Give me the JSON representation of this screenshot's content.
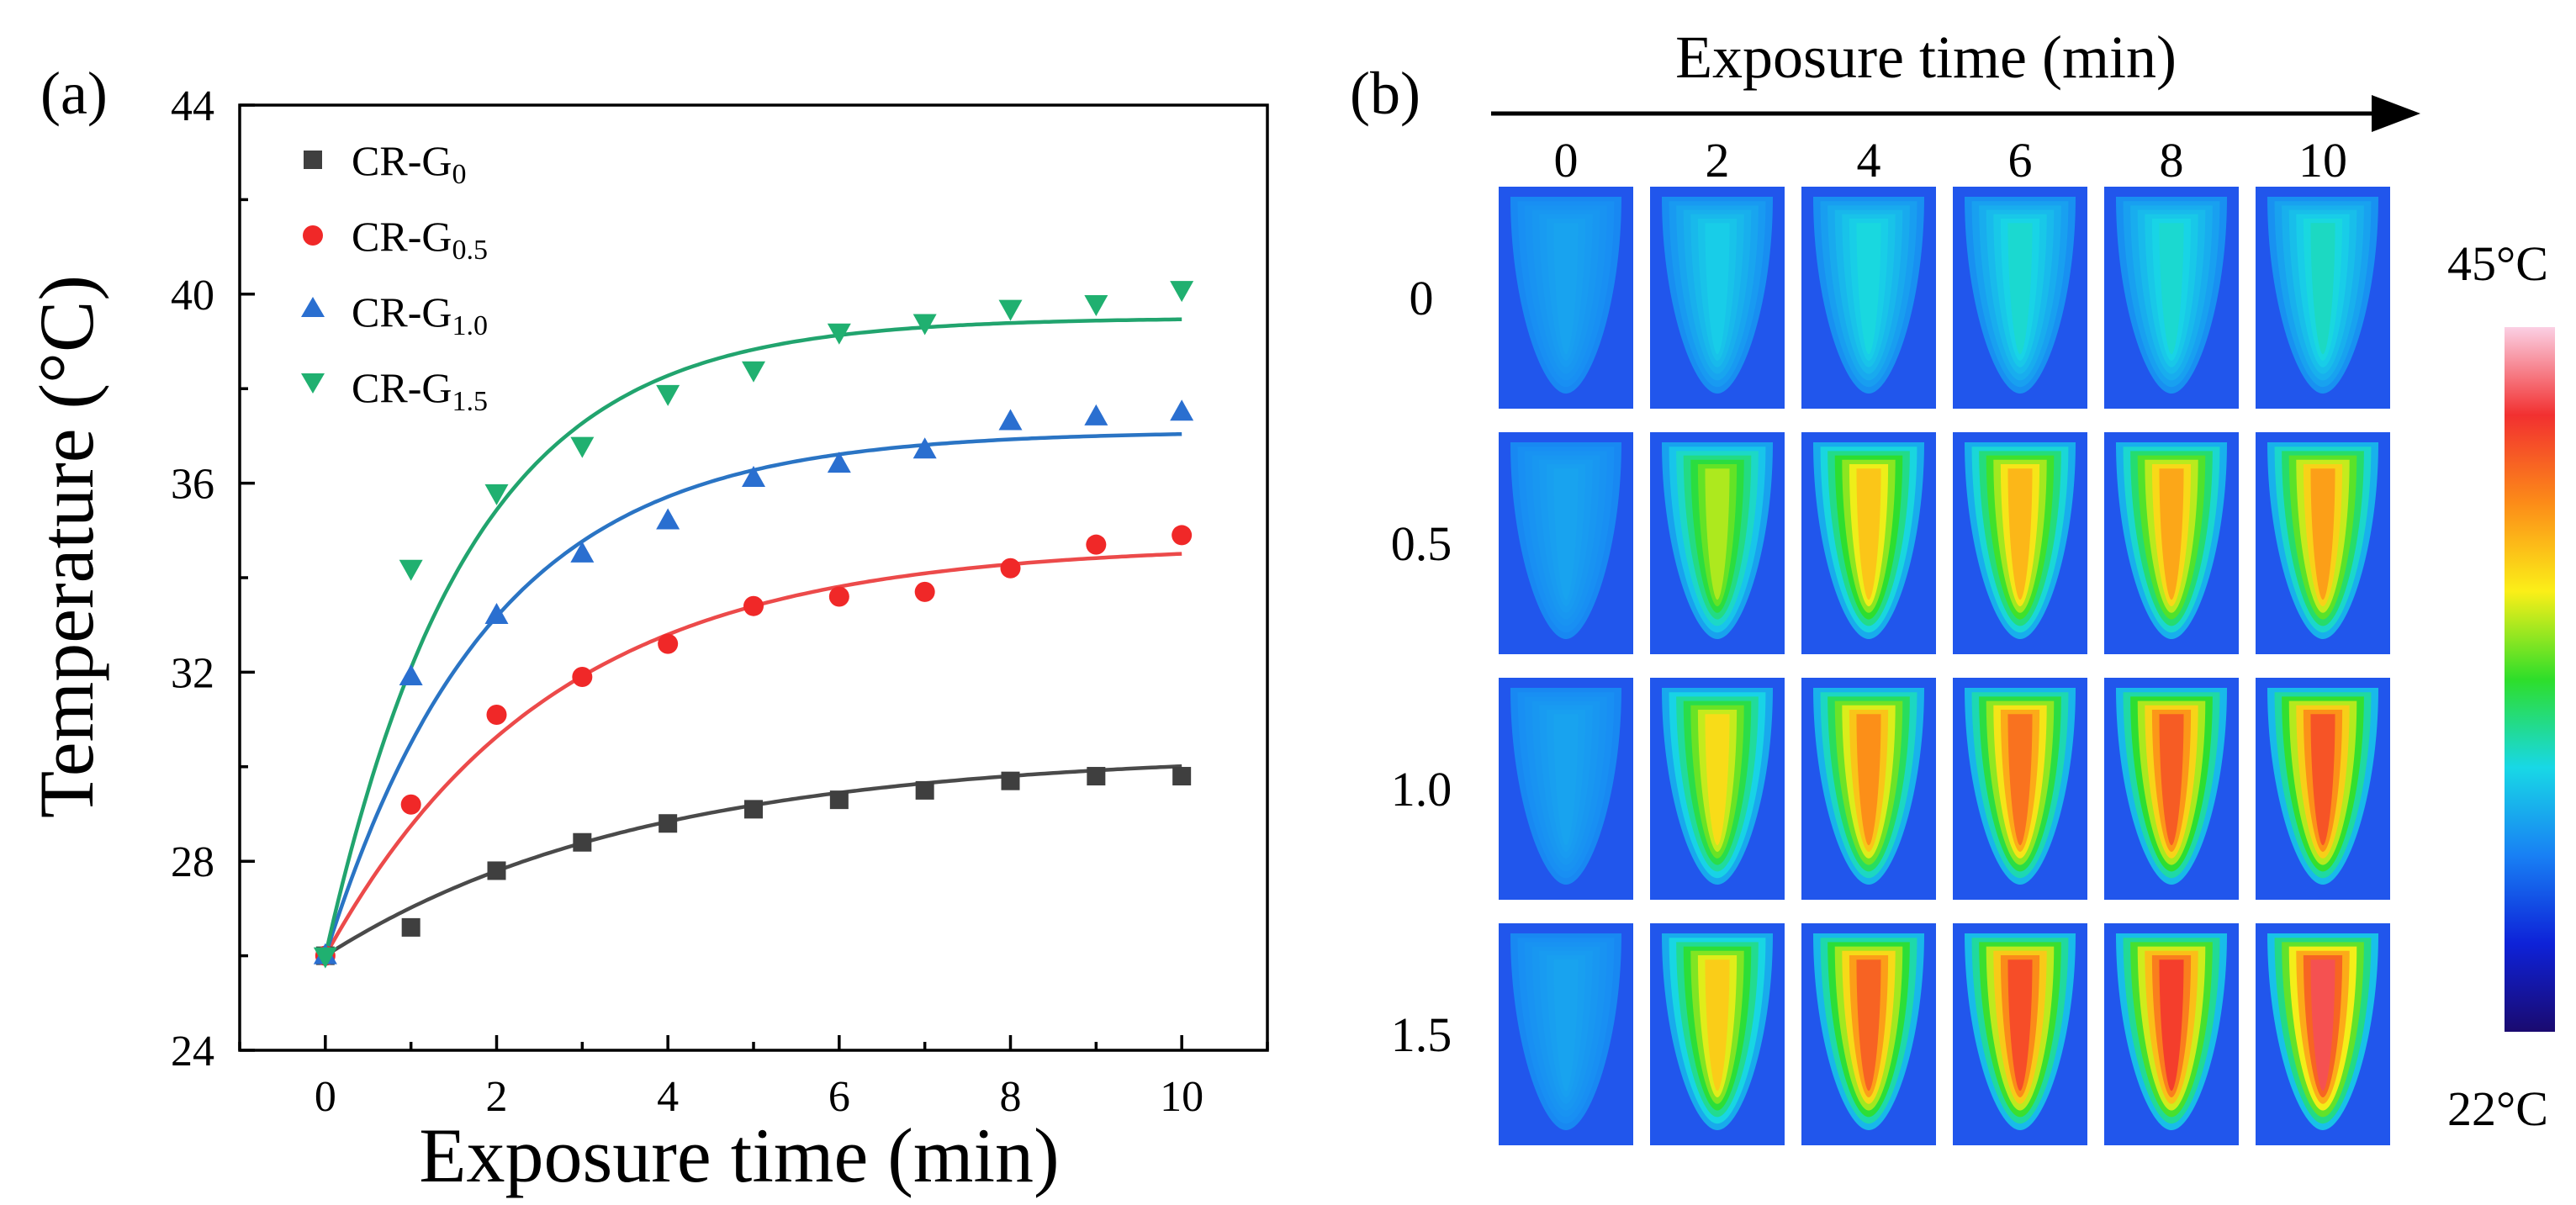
{
  "panel_a": {
    "label": "(a)",
    "legend": [
      {
        "prefix": "CR-G",
        "sub": "0",
        "marker": "square",
        "color": "#3f3f3f"
      },
      {
        "prefix": "CR-G",
        "sub": "0.5",
        "marker": "circle",
        "color": "#f02828"
      },
      {
        "prefix": "CR-G",
        "sub": "1.0",
        "marker": "triangle-up",
        "color": "#2a6fd0"
      },
      {
        "prefix": "CR-G",
        "sub": "1.5",
        "marker": "triangle-down",
        "color": "#20b070"
      }
    ]
  },
  "chart_data": {
    "type": "scatter",
    "title": "",
    "xlabel": "Exposure time (min)",
    "ylabel": "Temperature (°C)",
    "xlim": [
      -1,
      11
    ],
    "ylim": [
      24,
      44
    ],
    "xticks": [
      0,
      2,
      4,
      6,
      8,
      10
    ],
    "yticks": [
      24,
      28,
      32,
      36,
      40,
      44
    ],
    "grid": false,
    "legend_position": "top-left",
    "x": [
      0,
      1,
      2,
      3,
      4,
      5,
      6,
      7,
      8,
      9,
      10
    ],
    "series": [
      {
        "name": "CR-G0",
        "color": "#3f3f3f",
        "line_color": "#4a4a4a",
        "marker": "square",
        "values": [
          26.0,
          26.6,
          27.8,
          28.4,
          28.8,
          29.1,
          29.3,
          29.5,
          29.7,
          29.8,
          29.8
        ],
        "fit": {
          "start": 26.0,
          "plateau": 30.3,
          "rate": 0.27
        }
      },
      {
        "name": "CR-G0.5",
        "color": "#f02828",
        "line_color": "#ec4a4a",
        "marker": "circle",
        "values": [
          26.0,
          29.2,
          31.1,
          31.9,
          32.6,
          33.4,
          33.6,
          33.7,
          34.2,
          34.7,
          34.9
        ],
        "fit": {
          "start": 26.0,
          "plateau": 34.7,
          "rate": 0.38
        }
      },
      {
        "name": "CR-G1.0",
        "color": "#2a6fd0",
        "line_color": "#2a74c4",
        "marker": "triangle-up",
        "values": [
          26.0,
          31.9,
          33.2,
          34.5,
          35.2,
          36.1,
          36.4,
          36.7,
          37.3,
          37.4,
          37.5
        ],
        "fit": {
          "start": 26.0,
          "plateau": 37.1,
          "rate": 0.52
        }
      },
      {
        "name": "CR-G1.5",
        "color": "#20b070",
        "line_color": "#21a46e",
        "marker": "triangle-down",
        "values": [
          26.0,
          34.2,
          35.8,
          36.8,
          37.9,
          38.4,
          39.2,
          39.4,
          39.7,
          39.8,
          40.1
        ],
        "fit": {
          "start": 26.0,
          "plateau": 39.5,
          "rate": 0.6
        }
      }
    ]
  },
  "panel_b": {
    "label": "(b)",
    "axis_title": "Exposure time (min)",
    "time_labels": [
      "0",
      "2",
      "4",
      "6",
      "8",
      "10"
    ],
    "row_labels": [
      "0",
      "0.5",
      "1.0",
      "1.5"
    ],
    "colorbar_max_label": "45°C",
    "colorbar_min_label": "22°C",
    "colorbar_colors": [
      "#fbd0e4",
      "#f23030",
      "#fc8c18",
      "#fbef18",
      "#2ede2a",
      "#18d8e6",
      "#1880f4",
      "#0e22d8",
      "#1a0a70"
    ],
    "background_color": "#2156ec",
    "core_temperature_fraction": [
      [
        0.3,
        0.36,
        0.38,
        0.39,
        0.39,
        0.4
      ],
      [
        0.3,
        0.58,
        0.68,
        0.7,
        0.72,
        0.73
      ],
      [
        0.3,
        0.65,
        0.75,
        0.79,
        0.82,
        0.83
      ],
      [
        0.3,
        0.67,
        0.81,
        0.84,
        0.86,
        0.9
      ]
    ]
  }
}
